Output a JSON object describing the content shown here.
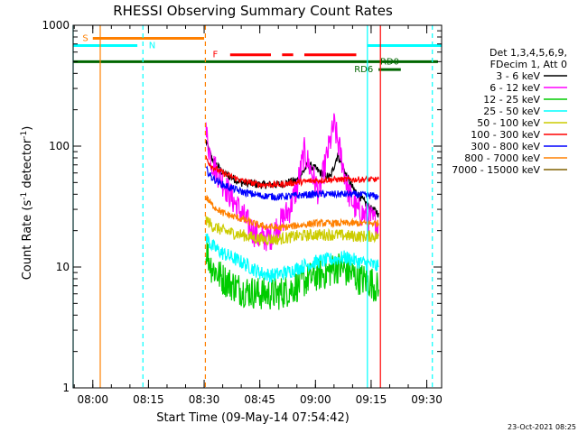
{
  "chart_data": {
    "type": "line",
    "title": "RHESSI Observing Summary Count Rates",
    "xlabel": "Start Time (09-May-14 07:54:42)",
    "ylabel_parts": [
      "Count Rate (s",
      "-1",
      " detector",
      "-1",
      ")"
    ],
    "y_scale": "log",
    "ylim": [
      1,
      1000
    ],
    "xlim": [
      "07:54:42",
      "09:34:00"
    ],
    "y_ticks": [
      {
        "value": 1,
        "label": "1"
      },
      {
        "value": 10,
        "label": "10"
      },
      {
        "value": 100,
        "label": "100"
      },
      {
        "value": 1000,
        "label": "1000"
      }
    ],
    "x_ticks": [
      {
        "value": "08:00",
        "label": "08:00"
      },
      {
        "value": "08:15",
        "label": "08:15"
      },
      {
        "value": "08:30",
        "label": "08:30"
      },
      {
        "value": "08:45",
        "label": "08:45"
      },
      {
        "value": "09:00",
        "label": "09:00"
      },
      {
        "value": "09:15",
        "label": "09:15"
      },
      {
        "value": "09:30",
        "label": "09:30"
      }
    ],
    "legend": {
      "placement": "right",
      "header": [
        "Det 1,3,4,5,6,9,",
        "FDecim 1, Att 0"
      ],
      "entries": [
        {
          "label": "3 - 6 keV",
          "color": "#000000"
        },
        {
          "label": "6 - 12 keV",
          "color": "#ff00ff"
        },
        {
          "label": "12 - 25 keV",
          "color": "#00cc00"
        },
        {
          "label": "25 - 50 keV",
          "color": "#00ffff"
        },
        {
          "label": "50 - 100 keV",
          "color": "#cccc00"
        },
        {
          "label": "100 - 300 keV",
          "color": "#ff0000"
        },
        {
          "label": "300 - 800 keV",
          "color": "#0000ff"
        },
        {
          "label": "800 - 7000 keV",
          "color": "#ff8000"
        },
        {
          "label": "7000 - 15000 keV",
          "color": "#806000"
        }
      ]
    },
    "series": [
      {
        "name": "3 - 6 keV",
        "color": "#000000",
        "noise": 0.035,
        "points": [
          [
            "08:30:30",
            110
          ],
          [
            "08:32",
            80
          ],
          [
            "08:35",
            60
          ],
          [
            "08:40",
            50
          ],
          [
            "08:45",
            48
          ],
          [
            "08:50",
            48
          ],
          [
            "08:55",
            52
          ],
          [
            "08:58",
            70
          ],
          [
            "09:00",
            65
          ],
          [
            "09:02",
            58
          ],
          [
            "09:04",
            55
          ],
          [
            "09:06",
            85
          ],
          [
            "09:08",
            60
          ],
          [
            "09:10",
            45
          ],
          [
            "09:13",
            35
          ],
          [
            "09:15",
            30
          ],
          [
            "09:17",
            28
          ]
        ]
      },
      {
        "name": "6 - 12 keV",
        "color": "#ff00ff",
        "noise": 0.12,
        "points": [
          [
            "08:30:30",
            130
          ],
          [
            "08:32",
            75
          ],
          [
            "08:35",
            50
          ],
          [
            "08:38",
            35
          ],
          [
            "08:40",
            28
          ],
          [
            "08:43",
            20
          ],
          [
            "08:45",
            17
          ],
          [
            "08:48",
            18
          ],
          [
            "08:50",
            22
          ],
          [
            "08:53",
            30
          ],
          [
            "08:55",
            45
          ],
          [
            "08:57",
            90
          ],
          [
            "08:59",
            60
          ],
          [
            "09:01",
            40
          ],
          [
            "09:03",
            80
          ],
          [
            "09:05",
            150
          ],
          [
            "09:07",
            80
          ],
          [
            "09:09",
            40
          ],
          [
            "09:11",
            30
          ],
          [
            "09:13",
            27
          ],
          [
            "09:15",
            25
          ],
          [
            "09:17",
            22
          ]
        ]
      },
      {
        "name": "12 - 25 keV",
        "color": "#00cc00",
        "noise": 0.14,
        "points": [
          [
            "08:30:30",
            14
          ],
          [
            "08:32",
            10
          ],
          [
            "08:35",
            8
          ],
          [
            "08:38",
            7
          ],
          [
            "08:40",
            6.5
          ],
          [
            "08:45",
            6
          ],
          [
            "08:50",
            6
          ],
          [
            "08:53",
            6.5
          ],
          [
            "08:55",
            7
          ],
          [
            "08:58",
            8
          ],
          [
            "09:00",
            8.5
          ],
          [
            "09:03",
            9
          ],
          [
            "09:06",
            10
          ],
          [
            "09:09",
            9
          ],
          [
            "09:12",
            8
          ],
          [
            "09:15",
            7.5
          ],
          [
            "09:17",
            6.5
          ]
        ]
      },
      {
        "name": "25 - 50 keV",
        "color": "#00ffff",
        "noise": 0.06,
        "points": [
          [
            "08:30:30",
            18
          ],
          [
            "08:32",
            15
          ],
          [
            "08:35",
            13
          ],
          [
            "08:40",
            11
          ],
          [
            "08:45",
            9
          ],
          [
            "08:48",
            8.5
          ],
          [
            "08:52",
            9
          ],
          [
            "08:56",
            10
          ],
          [
            "09:00",
            11
          ],
          [
            "09:04",
            11.5
          ],
          [
            "09:08",
            12
          ],
          [
            "09:12",
            11
          ],
          [
            "09:15",
            10.5
          ],
          [
            "09:17",
            10
          ]
        ]
      },
      {
        "name": "50 - 100 keV",
        "color": "#cccc00",
        "noise": 0.05,
        "points": [
          [
            "08:30:30",
            25
          ],
          [
            "08:32",
            22
          ],
          [
            "08:35",
            20
          ],
          [
            "08:40",
            18.5
          ],
          [
            "08:45",
            17
          ],
          [
            "08:50",
            17
          ],
          [
            "08:55",
            18
          ],
          [
            "09:00",
            18.5
          ],
          [
            "09:05",
            18.5
          ],
          [
            "09:10",
            18
          ],
          [
            "09:15",
            18
          ],
          [
            "09:17",
            18
          ]
        ]
      },
      {
        "name": "100 - 300 keV",
        "color": "#ff0000",
        "noise": 0.025,
        "points": [
          [
            "08:30:30",
            80
          ],
          [
            "08:32",
            68
          ],
          [
            "08:35",
            60
          ],
          [
            "08:40",
            52
          ],
          [
            "08:45",
            48
          ],
          [
            "08:50",
            48
          ],
          [
            "08:55",
            50
          ],
          [
            "09:00",
            52
          ],
          [
            "09:05",
            53
          ],
          [
            "09:10",
            53
          ],
          [
            "09:15",
            53
          ],
          [
            "09:17",
            53
          ]
        ]
      },
      {
        "name": "300 - 800 keV",
        "color": "#0000ff",
        "noise": 0.03,
        "points": [
          [
            "08:30:30",
            65
          ],
          [
            "08:32",
            55
          ],
          [
            "08:35",
            48
          ],
          [
            "08:40",
            42
          ],
          [
            "08:45",
            39
          ],
          [
            "08:50",
            38
          ],
          [
            "08:55",
            39
          ],
          [
            "09:00",
            40
          ],
          [
            "09:05",
            40
          ],
          [
            "09:10",
            40
          ],
          [
            "09:15",
            39
          ],
          [
            "09:17",
            38
          ]
        ]
      },
      {
        "name": "800 - 7000 keV",
        "color": "#ff8000",
        "noise": 0.03,
        "points": [
          [
            "08:30:30",
            38
          ],
          [
            "08:32",
            33
          ],
          [
            "08:35",
            28
          ],
          [
            "08:40",
            25
          ],
          [
            "08:45",
            22
          ],
          [
            "08:50",
            21
          ],
          [
            "08:55",
            22
          ],
          [
            "09:00",
            23
          ],
          [
            "09:05",
            23
          ],
          [
            "09:10",
            23
          ],
          [
            "09:15",
            23
          ],
          [
            "09:17",
            23
          ]
        ]
      }
    ],
    "vertical_lines": [
      {
        "x": "07:54:42",
        "color": "#00ffff",
        "style": "solid"
      },
      {
        "x": "08:02",
        "color": "#ff8000",
        "style": "solid"
      },
      {
        "x": "08:13:30",
        "color": "#00ffff",
        "style": "dashed"
      },
      {
        "x": "08:30:20",
        "color": "#ff8000",
        "style": "dashed"
      },
      {
        "x": "09:14",
        "color": "#00ffff",
        "style": "solid"
      },
      {
        "x": "09:17:30",
        "color": "#ff0000",
        "style": "solid"
      },
      {
        "x": "09:31:30",
        "color": "#00ffff",
        "style": "dashed"
      }
    ],
    "status_bars": [
      {
        "label": "S",
        "color": "#ff8000",
        "y": 780,
        "x_start": "08:00",
        "x_end": "08:30",
        "label_at": "07:58",
        "segments": [
          [
            "08:00",
            "08:30"
          ]
        ]
      },
      {
        "label": "N",
        "color": "#00ffff",
        "y": 680,
        "x_start": "07:54:42",
        "x_end": "08:12",
        "label_at": "08:16",
        "segments": [
          [
            "07:54:42",
            "08:12"
          ]
        ]
      },
      {
        "label": "F",
        "color": "#ff0000",
        "y": 570,
        "x_start": "08:37",
        "x_end": "09:11",
        "label_at": "08:33",
        "segments": [
          [
            "08:37",
            "08:48"
          ],
          [
            "08:51",
            "08:54"
          ],
          [
            "08:57",
            "09:11"
          ]
        ]
      },
      {
        "label": "RD0",
        "color": "#006600",
        "y": 500,
        "x_start": "07:54:42",
        "x_end": "09:33",
        "label_at": "09:20",
        "segments": [
          [
            "07:54:42",
            "09:33"
          ]
        ]
      },
      {
        "label": "RD6",
        "color": "#006600",
        "y": 430,
        "x_start": "09:17",
        "x_end": "09:23",
        "label_at": "09:13",
        "segments": [
          [
            "09:17",
            "09:23"
          ]
        ]
      },
      {
        "label": "",
        "color": "#00ffff",
        "y": 680,
        "x_start": "09:14",
        "x_end": "09:34",
        "label_at": "",
        "segments": [
          [
            "09:14",
            "09:34"
          ]
        ]
      }
    ],
    "footer": "23-Oct-2021 08:25"
  }
}
